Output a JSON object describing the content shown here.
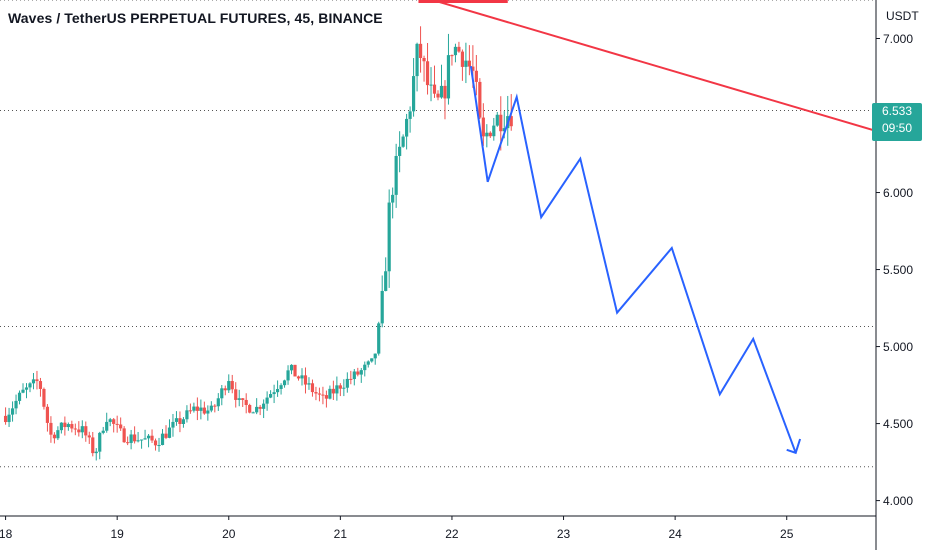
{
  "header": {
    "title": "Waves / TetherUS PERPETUAL FUTURES, 45, BINANCE"
  },
  "price_axis": {
    "unit": "USDT"
  },
  "last_price": {
    "value": "6.533",
    "countdown": "09:50"
  },
  "colors": {
    "up": "#26a69a",
    "down": "#ef5350",
    "trendline": "#f23645",
    "projection": "#2962ff"
  },
  "chart_data": {
    "type": "candlestick",
    "title": "Waves / TetherUS PERPETUAL FUTURES, 45, BINANCE",
    "xlabel": "",
    "ylabel": "",
    "x_ticks": [
      "18",
      "19",
      "20",
      "21",
      "22",
      "23",
      "24",
      "25"
    ],
    "y_ticks": [
      "7.000",
      "6.500",
      "6.000",
      "5.500",
      "5.000",
      "4.500",
      "4.000"
    ],
    "y_tick_values": [
      7.0,
      6.5,
      6.0,
      5.5,
      5.0,
      4.5,
      4.0
    ],
    "ylim": [
      3.9,
      7.25
    ],
    "xlim": [
      17.95,
      25.8
    ],
    "dotted_levels": [
      7.25,
      6.533,
      5.13,
      4.22
    ],
    "trendline": [
      {
        "day": 21.78,
        "price": 7.26
      },
      {
        "day": 25.8,
        "price": 6.4
      }
    ],
    "resistance_top": {
      "from": 21.7,
      "to": 22.5,
      "price": 7.25
    },
    "price_path": [
      {
        "day": 18.0,
        "price": 4.55
      },
      {
        "day": 18.15,
        "price": 4.7
      },
      {
        "day": 18.3,
        "price": 4.78
      },
      {
        "day": 18.4,
        "price": 4.42
      },
      {
        "day": 18.55,
        "price": 4.5
      },
      {
        "day": 18.7,
        "price": 4.45
      },
      {
        "day": 18.8,
        "price": 4.3
      },
      {
        "day": 18.9,
        "price": 4.55
      },
      {
        "day": 19.05,
        "price": 4.42
      },
      {
        "day": 19.2,
        "price": 4.4
      },
      {
        "day": 19.35,
        "price": 4.38
      },
      {
        "day": 19.5,
        "price": 4.48
      },
      {
        "day": 19.7,
        "price": 4.6
      },
      {
        "day": 19.85,
        "price": 4.58
      },
      {
        "day": 20.0,
        "price": 4.8
      },
      {
        "day": 20.1,
        "price": 4.62
      },
      {
        "day": 20.25,
        "price": 4.6
      },
      {
        "day": 20.4,
        "price": 4.72
      },
      {
        "day": 20.55,
        "price": 4.85
      },
      {
        "day": 20.7,
        "price": 4.75
      },
      {
        "day": 20.85,
        "price": 4.65
      },
      {
        "day": 21.0,
        "price": 4.75
      },
      {
        "day": 21.15,
        "price": 4.82
      },
      {
        "day": 21.3,
        "price": 4.9
      },
      {
        "day": 21.38,
        "price": 5.3
      },
      {
        "day": 21.45,
        "price": 6.0
      },
      {
        "day": 21.55,
        "price": 6.3
      },
      {
        "day": 21.62,
        "price": 6.55
      },
      {
        "day": 21.7,
        "price": 6.95
      },
      {
        "day": 21.78,
        "price": 6.7
      },
      {
        "day": 21.85,
        "price": 6.55
      },
      {
        "day": 21.92,
        "price": 6.62
      },
      {
        "day": 22.0,
        "price": 6.95
      },
      {
        "day": 22.1,
        "price": 6.9
      },
      {
        "day": 22.2,
        "price": 6.75
      },
      {
        "day": 22.27,
        "price": 6.3
      },
      {
        "day": 22.35,
        "price": 6.45
      },
      {
        "day": 22.45,
        "price": 6.5
      },
      {
        "day": 22.55,
        "price": 6.53
      }
    ],
    "projection": [
      {
        "day": 22.17,
        "price": 6.82
      },
      {
        "day": 22.32,
        "price": 6.07
      },
      {
        "day": 22.58,
        "price": 6.62
      },
      {
        "day": 22.8,
        "price": 5.84
      },
      {
        "day": 23.15,
        "price": 6.22
      },
      {
        "day": 23.48,
        "price": 5.22
      },
      {
        "day": 23.97,
        "price": 5.64
      },
      {
        "day": 24.4,
        "price": 4.69
      },
      {
        "day": 24.7,
        "price": 5.05
      },
      {
        "day": 25.08,
        "price": 4.31
      }
    ],
    "projection_arrowhead": [
      {
        "day": 25.0,
        "price": 4.33
      },
      {
        "day": 25.08,
        "price": 4.31
      },
      {
        "day": 25.12,
        "price": 4.4
      }
    ]
  }
}
